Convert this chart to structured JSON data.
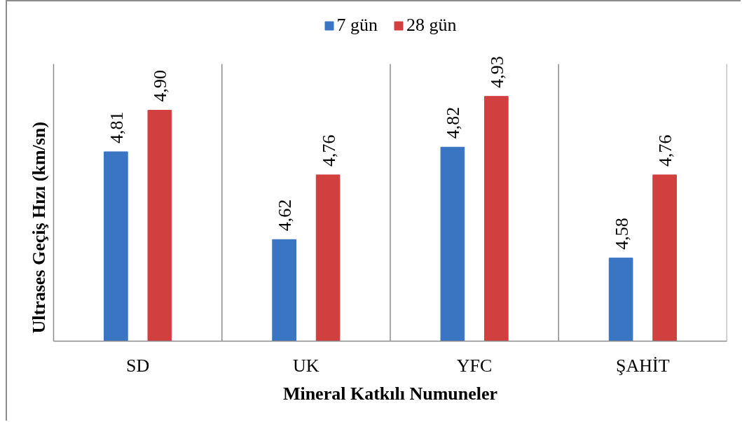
{
  "chart_data": {
    "type": "bar",
    "xlabel": "Mineral Katkılı Numuneler",
    "ylabel": "Ultrases Geçiş Hızı (km/sn)",
    "categories": [
      "SD",
      "UK",
      "YFC",
      "ŞAHİT"
    ],
    "series": [
      {
        "name": "7 gün",
        "color": "#3a75c4",
        "values": [
          4.81,
          4.62,
          4.82,
          4.58
        ],
        "value_labels": [
          "4,81",
          "4,62",
          "4,82",
          "4,58"
        ]
      },
      {
        "name": "28 gün",
        "color": "#d23f3f",
        "values": [
          4.9,
          4.76,
          4.93,
          4.76
        ],
        "value_labels": [
          "4,90",
          "4,76",
          "4,93",
          "4,76"
        ]
      }
    ],
    "ylim": [
      4.4,
      5.0
    ],
    "tick_labels": "x",
    "grid": "x",
    "legend": "top"
  }
}
